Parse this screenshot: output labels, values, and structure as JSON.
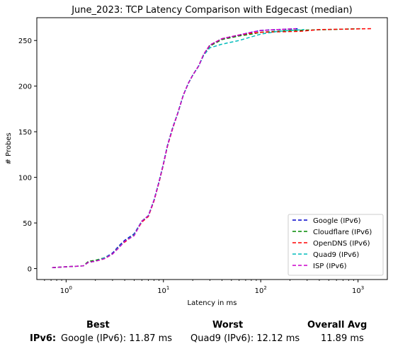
{
  "chart_data": {
    "type": "line",
    "title": "June_2023: TCP Latency Comparison with Edgecast (median)",
    "xlabel": "Latency in ms",
    "ylabel": "# Probes",
    "x_scale": "log",
    "xlim": [
      0.5,
      2000
    ],
    "ylim": [
      -12,
      275
    ],
    "x_ticks": [
      {
        "value": 1,
        "base": "10",
        "exp": "0"
      },
      {
        "value": 10,
        "base": "10",
        "exp": "1"
      },
      {
        "value": 100,
        "base": "10",
        "exp": "2"
      },
      {
        "value": 1000,
        "base": "10",
        "exp": "3"
      }
    ],
    "y_ticks": [
      0,
      50,
      100,
      150,
      200,
      250
    ],
    "grid": false,
    "legend_position": "lower-right",
    "series": [
      {
        "name": "Google (IPv6)",
        "color": "#0000cc",
        "points": [
          [
            0.72,
            1
          ],
          [
            1.0,
            2
          ],
          [
            1.5,
            3
          ],
          [
            1.7,
            7
          ],
          [
            2.0,
            8
          ],
          [
            2.5,
            12
          ],
          [
            3.0,
            17
          ],
          [
            3.5,
            25
          ],
          [
            4.0,
            31
          ],
          [
            5.0,
            38
          ],
          [
            6.0,
            52
          ],
          [
            7.0,
            58
          ],
          [
            8.0,
            75
          ],
          [
            9.0,
            95
          ],
          [
            10.0,
            115
          ],
          [
            11.0,
            135
          ],
          [
            12.5,
            155
          ],
          [
            14.0,
            170
          ],
          [
            16.0,
            190
          ],
          [
            18.0,
            203
          ],
          [
            20.0,
            212
          ],
          [
            23.0,
            222
          ],
          [
            26.0,
            235
          ],
          [
            30.0,
            245
          ],
          [
            40.0,
            252
          ],
          [
            60.0,
            256
          ],
          [
            80.0,
            259
          ],
          [
            100.0,
            261
          ],
          [
            150.0,
            262
          ],
          [
            250.0,
            263
          ]
        ]
      },
      {
        "name": "Cloudflare (IPv6)",
        "color": "#008800",
        "points": [
          [
            0.72,
            1
          ],
          [
            1.0,
            2
          ],
          [
            1.5,
            3
          ],
          [
            1.7,
            8
          ],
          [
            2.0,
            9
          ],
          [
            2.5,
            12
          ],
          [
            3.0,
            16
          ],
          [
            3.5,
            24
          ],
          [
            4.0,
            30
          ],
          [
            5.0,
            37
          ],
          [
            6.0,
            52
          ],
          [
            7.0,
            58
          ],
          [
            8.0,
            75
          ],
          [
            9.0,
            95
          ],
          [
            10.0,
            115
          ],
          [
            11.0,
            135
          ],
          [
            12.5,
            155
          ],
          [
            14.0,
            170
          ],
          [
            16.0,
            190
          ],
          [
            18.0,
            203
          ],
          [
            20.0,
            212
          ],
          [
            23.0,
            222
          ],
          [
            26.0,
            235
          ],
          [
            30.0,
            244
          ],
          [
            40.0,
            251
          ],
          [
            60.0,
            255
          ],
          [
            80.0,
            257
          ],
          [
            100.0,
            259
          ],
          [
            200.0,
            261
          ],
          [
            500.0,
            262
          ],
          [
            1100.0,
            263
          ]
        ]
      },
      {
        "name": "OpenDNS (IPv6)",
        "color": "#ff0000",
        "points": [
          [
            0.72,
            1
          ],
          [
            1.0,
            2
          ],
          [
            1.5,
            3
          ],
          [
            1.7,
            7
          ],
          [
            2.0,
            8
          ],
          [
            2.5,
            11
          ],
          [
            3.0,
            16
          ],
          [
            3.5,
            24
          ],
          [
            4.0,
            29
          ],
          [
            5.0,
            37
          ],
          [
            6.0,
            51
          ],
          [
            7.0,
            57
          ],
          [
            8.0,
            74
          ],
          [
            9.0,
            94
          ],
          [
            10.0,
            114
          ],
          [
            11.0,
            134
          ],
          [
            12.5,
            154
          ],
          [
            14.0,
            170
          ],
          [
            16.0,
            190
          ],
          [
            18.0,
            203
          ],
          [
            20.0,
            212
          ],
          [
            23.0,
            222
          ],
          [
            26.0,
            235
          ],
          [
            30.0,
            245
          ],
          [
            40.0,
            252
          ],
          [
            60.0,
            256
          ],
          [
            80.0,
            258
          ],
          [
            100.0,
            259
          ],
          [
            250.0,
            260
          ],
          [
            400.0,
            262
          ],
          [
            1400.0,
            263
          ]
        ]
      },
      {
        "name": "Quad9 (IPv6)",
        "color": "#00bbbb",
        "points": [
          [
            0.72,
            1
          ],
          [
            1.0,
            2
          ],
          [
            1.5,
            3
          ],
          [
            1.7,
            7
          ],
          [
            2.0,
            8
          ],
          [
            2.5,
            12
          ],
          [
            3.0,
            16
          ],
          [
            3.5,
            24
          ],
          [
            4.0,
            30
          ],
          [
            5.0,
            37
          ],
          [
            6.0,
            52
          ],
          [
            7.0,
            58
          ],
          [
            8.0,
            75
          ],
          [
            9.0,
            95
          ],
          [
            10.0,
            115
          ],
          [
            11.0,
            135
          ],
          [
            12.5,
            155
          ],
          [
            14.0,
            170
          ],
          [
            16.0,
            190
          ],
          [
            18.0,
            203
          ],
          [
            20.0,
            212
          ],
          [
            23.0,
            222
          ],
          [
            26.0,
            234
          ],
          [
            30.0,
            242
          ],
          [
            40.0,
            246
          ],
          [
            60.0,
            250
          ],
          [
            80.0,
            254
          ],
          [
            100.0,
            257
          ],
          [
            150.0,
            260
          ],
          [
            280.0,
            262
          ]
        ]
      },
      {
        "name": "ISP (IPv6)",
        "color": "#cc00cc",
        "points": [
          [
            0.72,
            1
          ],
          [
            1.0,
            2
          ],
          [
            1.5,
            3
          ],
          [
            1.7,
            7
          ],
          [
            2.0,
            8
          ],
          [
            2.5,
            11
          ],
          [
            3.0,
            16
          ],
          [
            3.5,
            23
          ],
          [
            4.0,
            30
          ],
          [
            5.0,
            36
          ],
          [
            6.0,
            52
          ],
          [
            7.0,
            58
          ],
          [
            8.0,
            75
          ],
          [
            9.0,
            95
          ],
          [
            10.0,
            115
          ],
          [
            11.0,
            135
          ],
          [
            12.5,
            155
          ],
          [
            14.0,
            170
          ],
          [
            16.0,
            190
          ],
          [
            18.0,
            203
          ],
          [
            20.0,
            212
          ],
          [
            23.0,
            222
          ],
          [
            26.0,
            235
          ],
          [
            30.0,
            245
          ],
          [
            40.0,
            252
          ],
          [
            60.0,
            256
          ],
          [
            80.0,
            259
          ],
          [
            100.0,
            261
          ],
          [
            150.0,
            262
          ],
          [
            230.0,
            263
          ]
        ]
      }
    ]
  },
  "summary": {
    "col_best": "Best",
    "col_worst": "Worst",
    "col_avg": "Overall Avg",
    "row_label": "IPv6:",
    "best": "Google (IPv6): 11.87 ms",
    "worst": "Quad9 (IPv6): 12.12 ms",
    "avg": "11.89 ms"
  }
}
